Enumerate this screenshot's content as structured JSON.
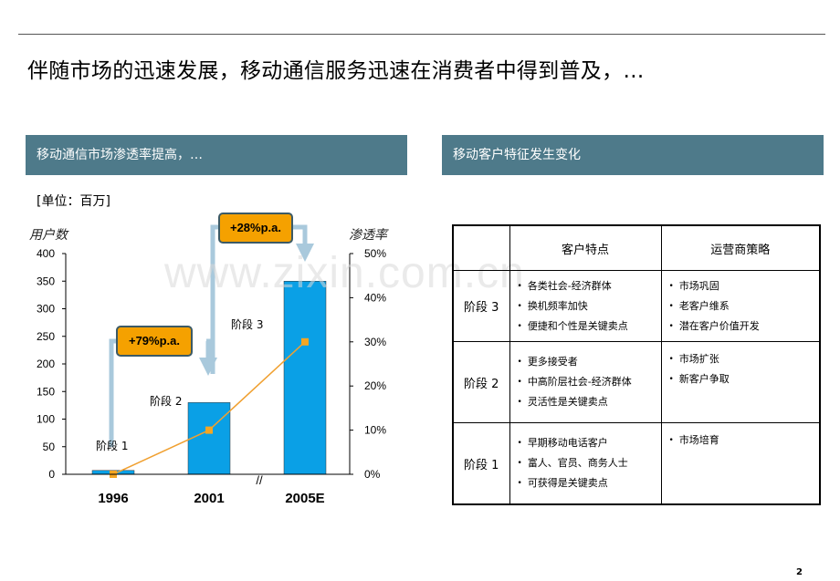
{
  "headline": "伴随市场的迅速发展，移动通信服务迅速在消费者中得到普及，…",
  "left_panel": {
    "title": "移动通信市场渗透率提高，…",
    "unit": "[单位：百万]"
  },
  "right_panel": {
    "title": "移动客户特征发生变化"
  },
  "chart_data": {
    "type": "bar",
    "categories": [
      "1996",
      "2001",
      "2005E"
    ],
    "series": [
      {
        "name": "用户数",
        "values": [
          7,
          130,
          350
        ]
      },
      {
        "name": "渗透率",
        "values": [
          0,
          10,
          30
        ]
      }
    ],
    "left_axis_title": "用户数",
    "right_axis_title": "渗透率",
    "left_ticks": [
      "0",
      "50",
      "100",
      "150",
      "200",
      "250",
      "300",
      "350",
      "400"
    ],
    "right_ticks": [
      "0%",
      "10%",
      "20%",
      "30%",
      "40%",
      "50%"
    ],
    "ylim": [
      0,
      400
    ],
    "ylim_right": [
      0,
      50
    ],
    "stages": [
      "阶段 1",
      "阶段 2",
      "阶段 3"
    ],
    "growth_labels": [
      "+79%p.a.",
      "+28%p.a."
    ],
    "axis_break": "//",
    "bar_color": "#0aa0e6",
    "line_color": "#f0a030",
    "marker_color": "#f5a623"
  },
  "table": {
    "headers": [
      "",
      "客户特点",
      "运营商策略"
    ],
    "rows": [
      {
        "stage": "阶段 3",
        "features": [
          "各类社会-经济群体",
          "换机频率加快",
          "便捷和个性是关键卖点"
        ],
        "strategy": [
          "市场巩固",
          "老客户维系",
          "潜在客户价值开发"
        ]
      },
      {
        "stage": "阶段 2",
        "features": [
          "更多接受者",
          "中高阶层社会-经济群体",
          "灵活性是关键卖点"
        ],
        "strategy": [
          "市场扩张",
          "新客户争取"
        ]
      },
      {
        "stage": "阶段 1",
        "features": [
          "早期移动电话客户",
          "富人、官员、商务人士",
          "可获得是关键卖点"
        ],
        "strategy": [
          "市场培育"
        ]
      }
    ]
  },
  "watermark": "www.zixin.com.cn",
  "page_number": "2"
}
